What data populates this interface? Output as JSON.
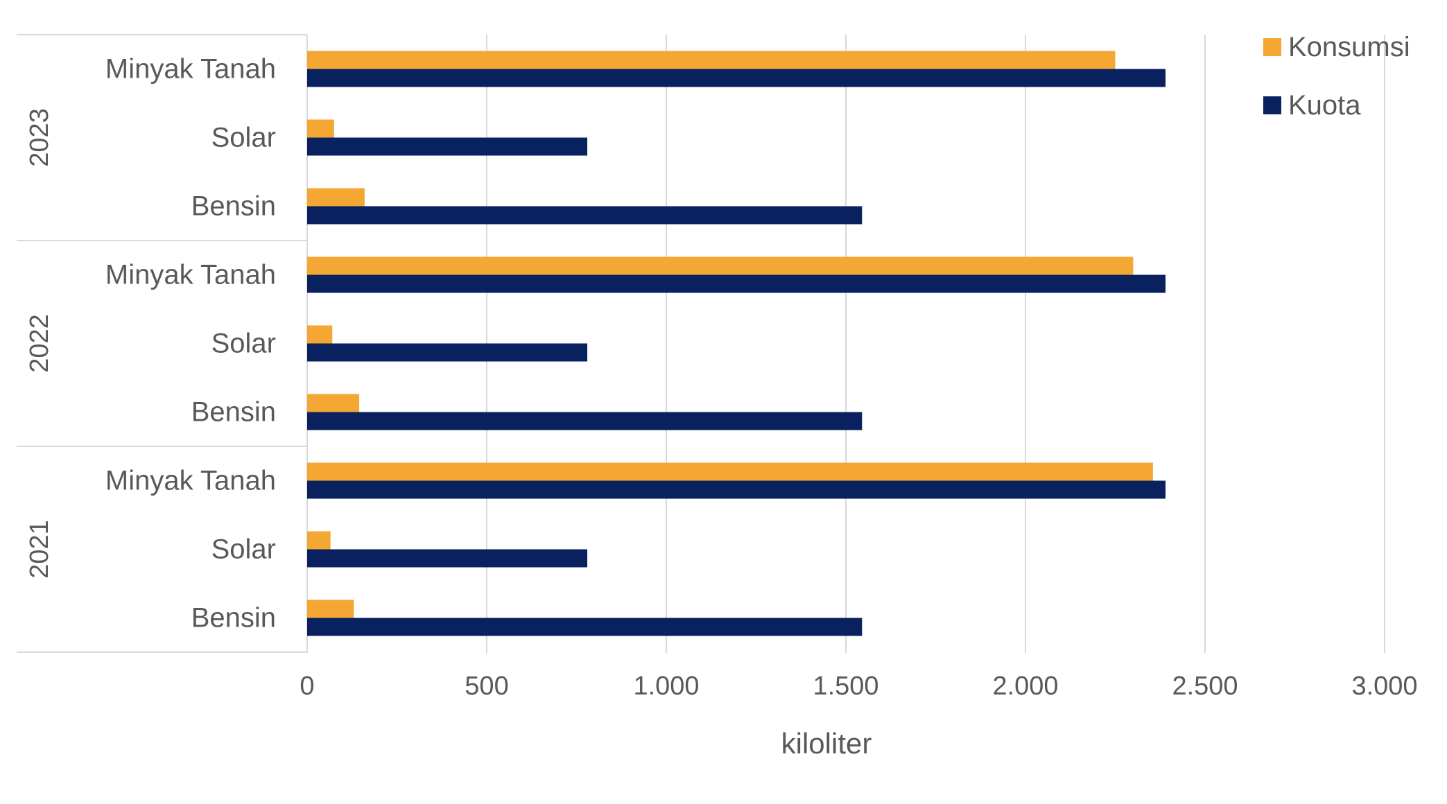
{
  "chart_data": {
    "type": "bar",
    "orientation": "horizontal",
    "xlabel": "kiloliter",
    "xlim": [
      0,
      3000
    ],
    "xticks": [
      0,
      500,
      1000,
      1500,
      2000,
      2500,
      3000
    ],
    "xtick_labels": [
      "0",
      "500",
      "1.000",
      "1.500",
      "2.000",
      "2.500",
      "3.000"
    ],
    "grid": "vertical",
    "legend_position": "top-right",
    "groups": [
      {
        "label": "2023",
        "categories": [
          "Minyak Tanah",
          "Solar",
          "Bensin"
        ]
      },
      {
        "label": "2022",
        "categories": [
          "Minyak Tanah",
          "Solar",
          "Bensin"
        ]
      },
      {
        "label": "2021",
        "categories": [
          "Minyak Tanah",
          "Solar",
          "Bensin"
        ]
      }
    ],
    "series": [
      {
        "name": "Konsumsi",
        "color": "#F4A733",
        "values": [
          [
            2250,
            75,
            160
          ],
          [
            2300,
            70,
            145
          ],
          [
            2355,
            65,
            130
          ]
        ]
      },
      {
        "name": "Kuota",
        "color": "#0A2160",
        "values": [
          [
            2390,
            780,
            1545
          ],
          [
            2390,
            780,
            1545
          ],
          [
            2390,
            780,
            1545
          ]
        ]
      }
    ]
  }
}
